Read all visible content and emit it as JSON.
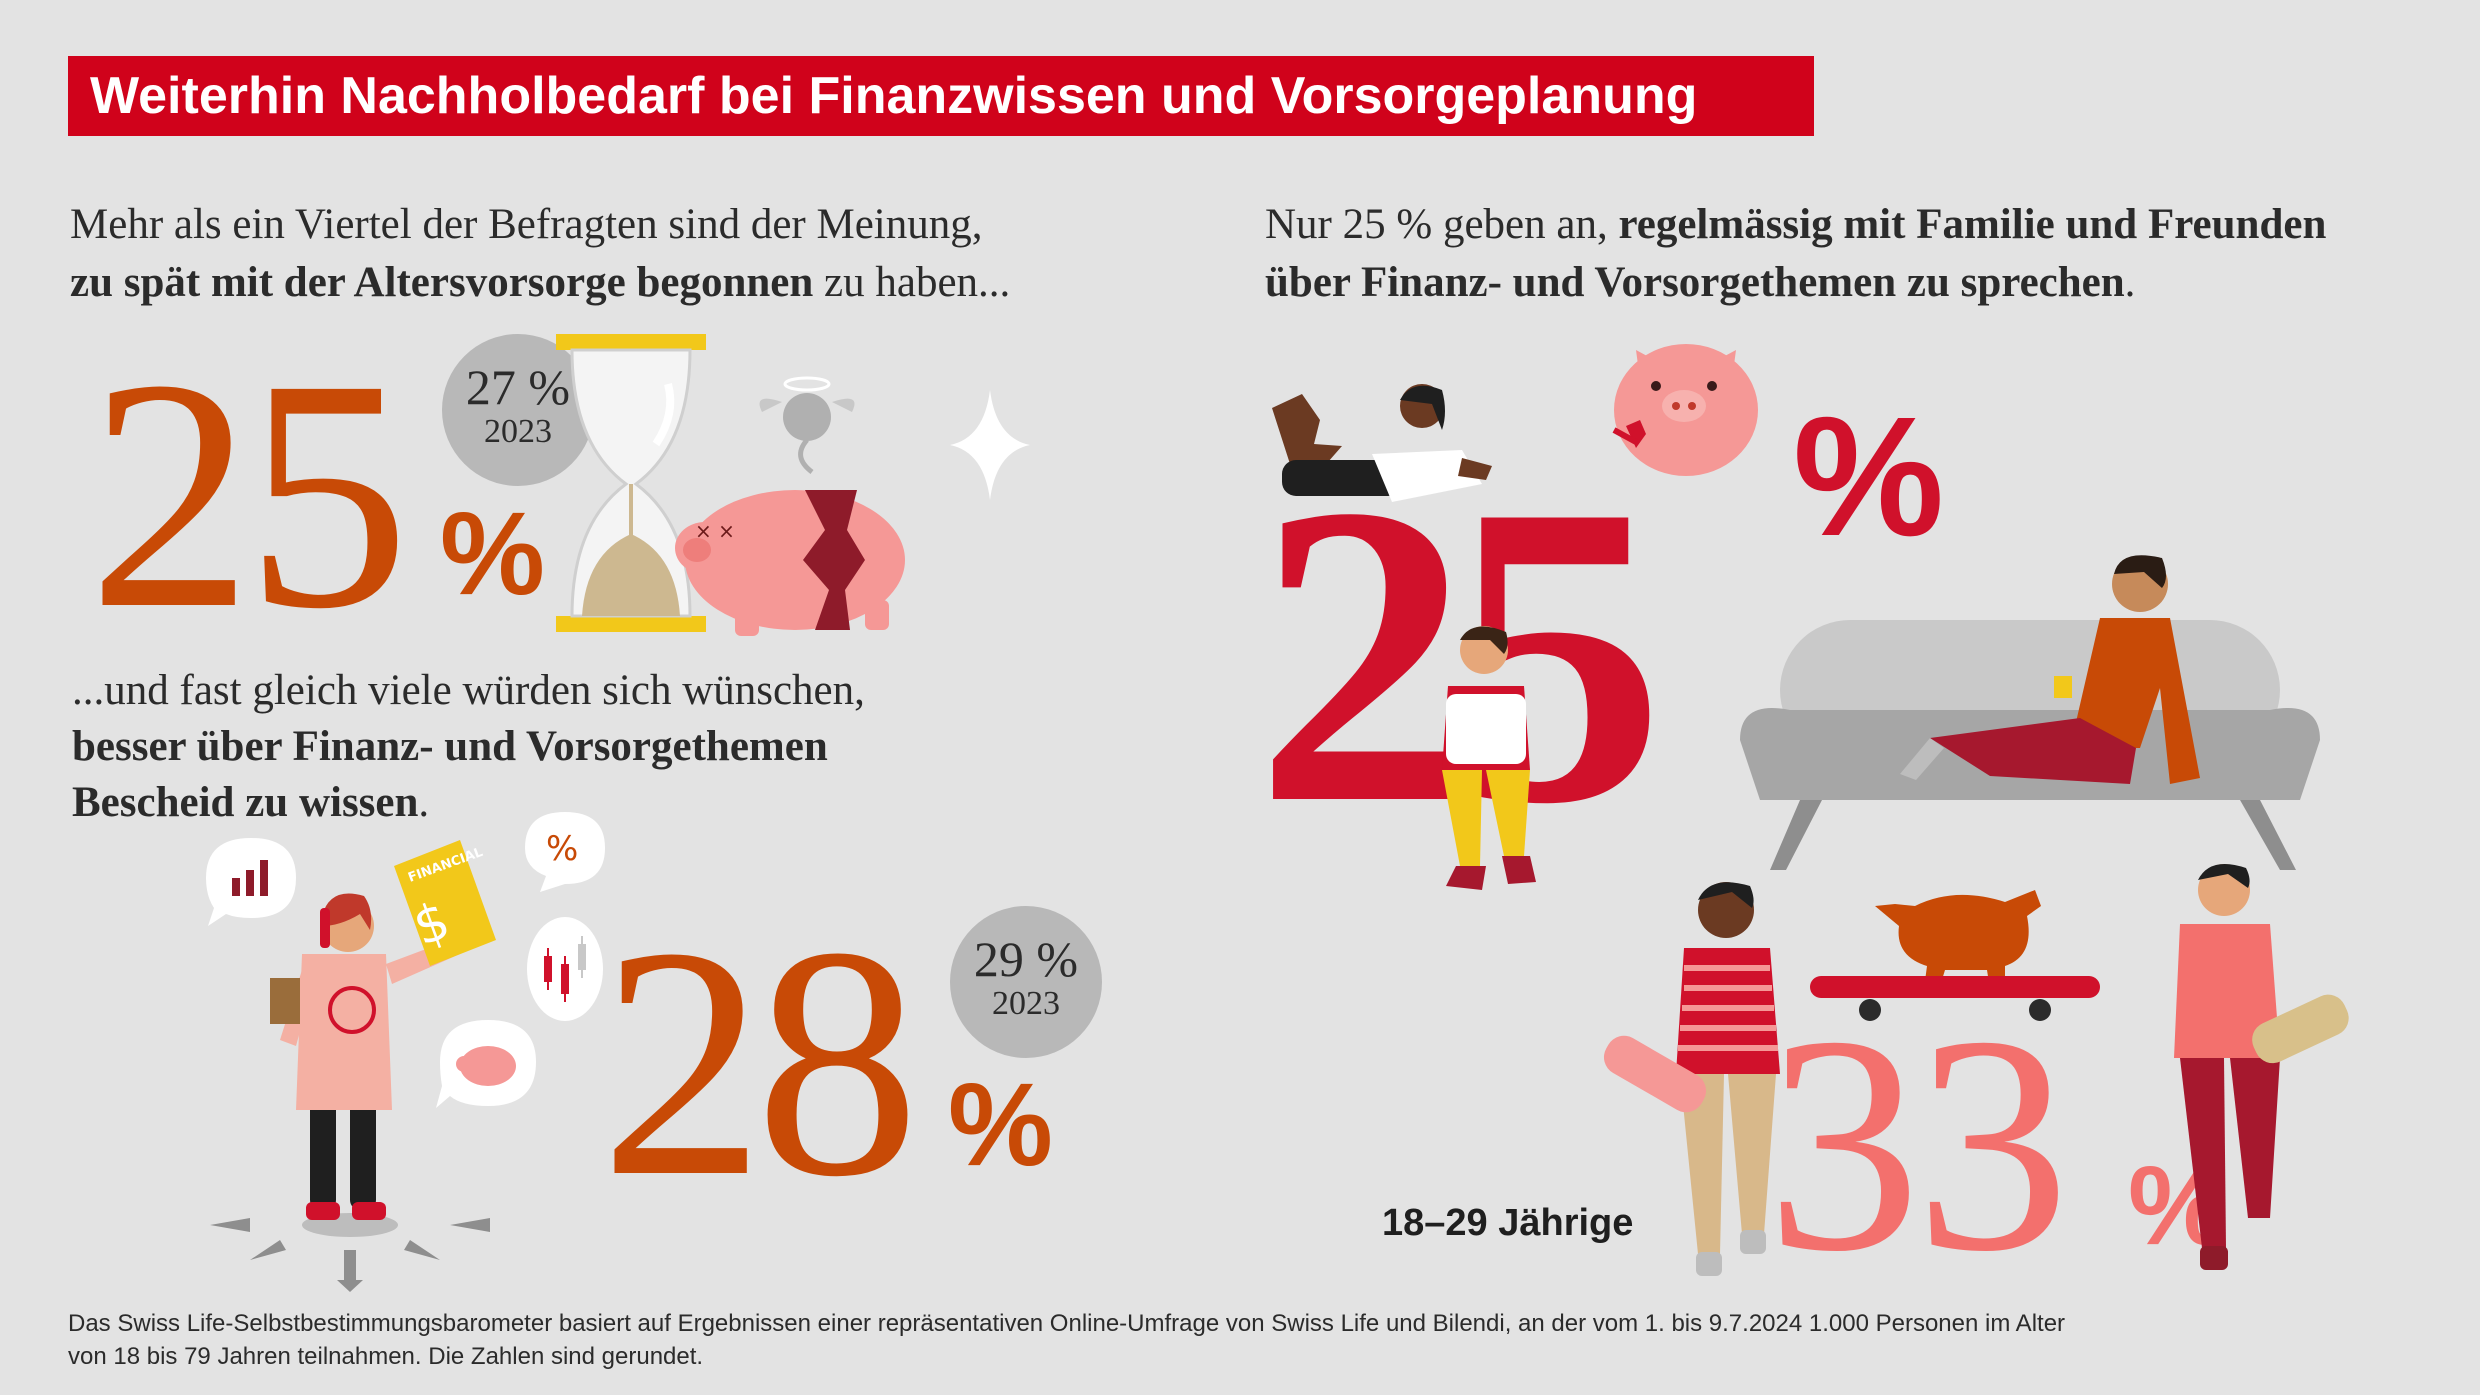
{
  "title": "Weiterhin Nachholbedarf bei Finanzwissen und Vorsorgeplanung",
  "left_top": {
    "line1": "Mehr als ein Viertel der Befragten sind der Meinung,",
    "line2_bold": "zu spät mit der Altersvorsorge begonnen",
    "line2_rest": " zu haben...",
    "value": "25",
    "unit": "%",
    "badge_value": "27 %",
    "badge_year": "2023"
  },
  "left_bottom": {
    "line1": "...und fast gleich viele würden sich wünschen,",
    "line2_bold": "besser über Finanz- und Vorsorgethemen",
    "line3_bold": "Bescheid zu wissen",
    "line3_rest": ".",
    "value": "28",
    "unit": "%",
    "badge_value": "29 %",
    "badge_year": "2023",
    "book_label": "FINANCIAL"
  },
  "right": {
    "line1_plain": "Nur 25 % geben an, ",
    "line1_bold": "regelmässig mit Familie und Freunden",
    "line2_bold": "über Finanz- und Vorsorgethemen zu sprechen",
    "line2_rest": ".",
    "value": "25",
    "unit": "%",
    "young_value": "33",
    "young_unit": "%",
    "young_label": "18–29 Jährige"
  },
  "footnote": {
    "line1": "Das Swiss Life-Selbstbestimmungsbarometer basiert auf Ergebnissen einer repräsentativen Online-Umfrage von Swiss Life und Bilendi, an der vom 1. bis 9.7.2024 1.000 Personen im Alter",
    "line2": "von 18 bis 79 Jahren teilnahmen. Die Zahlen sind gerundet."
  },
  "colors": {
    "accent_red": "#d0021b",
    "orange": "#c84a06",
    "pink": "#f3706d",
    "badge_grey": "#b8b8b8",
    "background": "#e3e3e3"
  },
  "icons": [
    "hourglass-icon",
    "piggy-bank-broken-icon",
    "angel-pig-icon",
    "sparkle-icon",
    "bar-chart-bubble-icon",
    "percent-bubble-icon",
    "candlestick-bubble-icon",
    "pig-bubble-icon",
    "piggy-bank-icon",
    "bull-icon",
    "skateboard-icon",
    "sofa-icon"
  ]
}
